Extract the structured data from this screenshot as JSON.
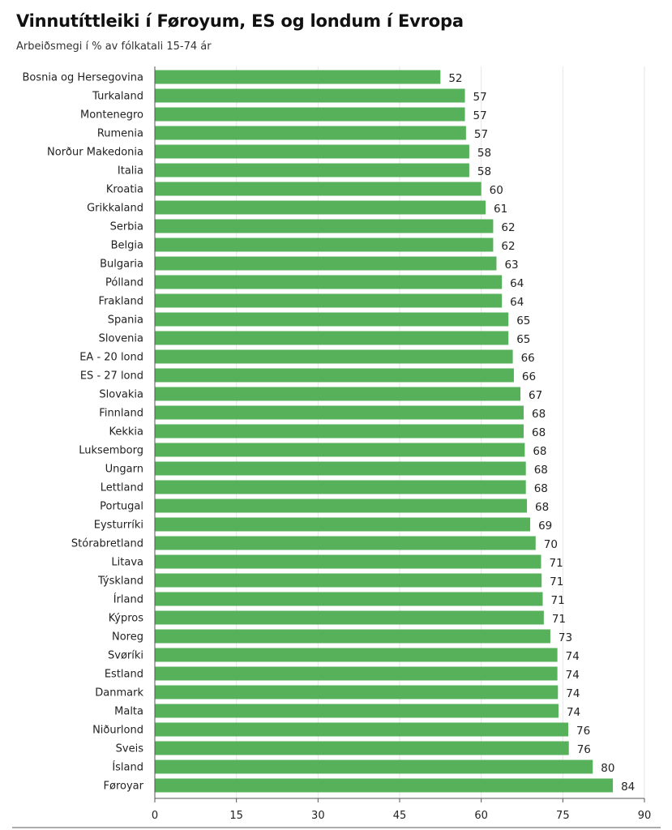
{
  "header": {
    "title": "Vinnutíttleiki í Føroyum, ES og londum í Evropa",
    "subtitle": "Arbeiðsmegi í % av fólkatali 15-74 ár"
  },
  "chart_data": {
    "type": "bar",
    "orientation": "horizontal",
    "title": "Vinnutíttleiki í Føroyum, ES og londum í Evropa",
    "subtitle": "Arbeiðsmegi í % av fólkatali 15-74 ár",
    "xlabel": "",
    "ylabel": "",
    "xlim": [
      0,
      90
    ],
    "xticks": [
      0,
      15,
      30,
      45,
      60,
      75,
      90
    ],
    "grid": true,
    "bar_color": "#57b05a",
    "categories": [
      "Bosnia og Hersegovina",
      "Turkaland",
      "Montenegro",
      "Rumenia",
      "Norður Makedonia",
      "Italia",
      "Kroatia",
      "Grikkaland",
      "Serbia",
      "Belgia",
      "Bulgaria",
      "Pólland",
      "Frakland",
      "Spania",
      "Slovenia",
      "EA - 20 lond",
      "ES - 27 lond",
      "Slovakia",
      "Finnland",
      "Kekkia",
      "Luksemborg",
      "Ungarn",
      "Lettland",
      "Portugal",
      "Eysturríki",
      "Stórabretland",
      "Litava",
      "Týskland",
      "Írland",
      "Kýpros",
      "Noreg",
      "Svøríki",
      "Estland",
      "Danmark",
      "Malta",
      "Niðurlond",
      "Sveis",
      "Ísland",
      "Føroyar"
    ],
    "values": [
      52.5,
      57.0,
      57.0,
      57.2,
      57.8,
      57.8,
      60.0,
      60.8,
      62.2,
      62.2,
      62.8,
      63.8,
      63.8,
      65.0,
      65.0,
      65.8,
      66.0,
      67.2,
      67.8,
      67.8,
      68.0,
      68.2,
      68.2,
      68.4,
      69.0,
      70.0,
      71.0,
      71.1,
      71.3,
      71.5,
      72.7,
      74.0,
      74.0,
      74.1,
      74.2,
      76.0,
      76.1,
      80.5,
      84.2
    ],
    "value_labels": [
      "52",
      "57",
      "57",
      "57",
      "58",
      "58",
      "60",
      "61",
      "62",
      "62",
      "63",
      "64",
      "64",
      "65",
      "65",
      "66",
      "66",
      "67",
      "68",
      "68",
      "68",
      "68",
      "68",
      "68",
      "69",
      "70",
      "71",
      "71",
      "71",
      "71",
      "73",
      "74",
      "74",
      "74",
      "74",
      "76",
      "76",
      "80",
      "84"
    ]
  }
}
